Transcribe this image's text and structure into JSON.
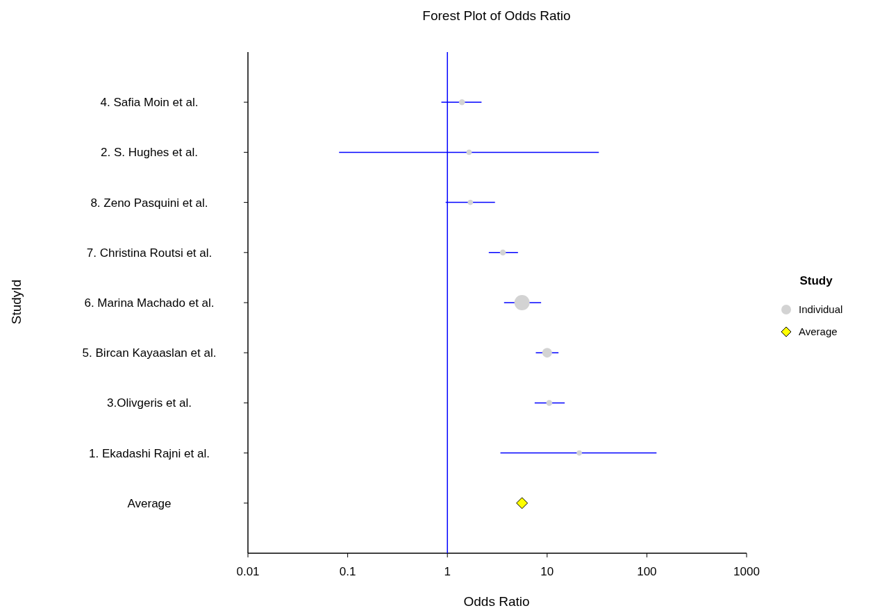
{
  "chart_data": {
    "type": "bubble",
    "orientation": "horizontal",
    "title": "Forest Plot of Odds Ratio",
    "xlabel": "Odds Ratio",
    "ylabel": "StudyId",
    "legend_title": "Study",
    "legend": "right",
    "categories": [
      "4. Safia Moin et al.",
      "2. S. Hughes et al.",
      "8. Zeno Pasquini et al.",
      "7. Christina Routsi et al.",
      "6. Marina Machado et al.",
      "5. Bircan Kayaaslan et al.",
      "3.Olivgeris et al.",
      "1. Ekadashi Rajni et al.",
      "Average"
    ],
    "series": [
      {
        "name": "Individual",
        "color": "#d3d3d3",
        "values": [
          1.4,
          1.65,
          1.7,
          3.6,
          5.6,
          10,
          10.5,
          21,
          null
        ],
        "sizes": [
          0.15,
          0.12,
          0.12,
          0.15,
          1,
          0.4,
          0.15,
          0.12,
          null
        ],
        "errors": [
          [
            0.87,
            2.2
          ],
          [
            0.082,
            33
          ],
          [
            0.96,
            3
          ],
          [
            2.6,
            5.1
          ],
          [
            3.7,
            8.7
          ],
          [
            7.7,
            13
          ],
          [
            7.5,
            15
          ],
          [
            3.4,
            125
          ],
          null
        ]
      },
      {
        "name": "Average",
        "type": "scatter",
        "marker": "diamond",
        "color": "#ffff00",
        "values": [
          null,
          null,
          null,
          null,
          null,
          null,
          null,
          null,
          5.6
        ]
      }
    ],
    "log": "x",
    "xlim": [
      0.01,
      1000
    ],
    "xticks": [
      0.01,
      0.1,
      1,
      10,
      100,
      1000
    ],
    "ref_lines": [
      {
        "axis": "x",
        "value": 1,
        "color": "#0000ff"
      }
    ]
  }
}
